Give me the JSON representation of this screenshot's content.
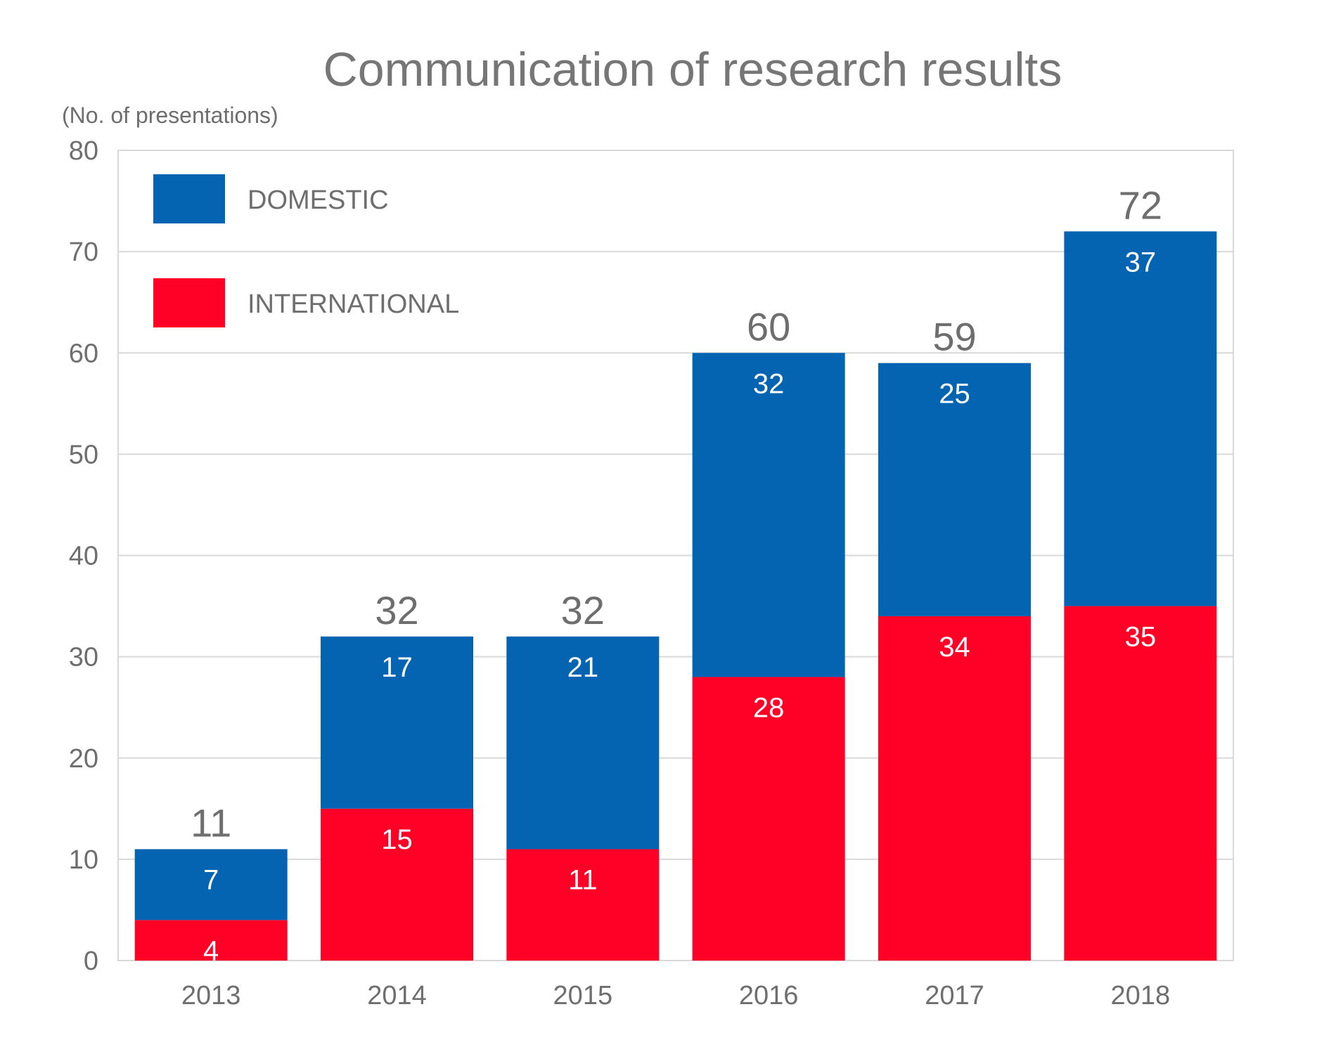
{
  "chart_data": {
    "type": "bar",
    "stacked": true,
    "title": "Communication of research results",
    "ylabel": "(No. of presentations)",
    "xlabel": "",
    "categories": [
      "2013",
      "2014",
      "2015",
      "2016",
      "2017",
      "2018"
    ],
    "series": [
      {
        "name": "INTERNATIONAL",
        "color": "#ff0026",
        "values": [
          4,
          15,
          11,
          28,
          34,
          35
        ]
      },
      {
        "name": "DOMESTIC",
        "color": "#0564b1",
        "values": [
          7,
          17,
          21,
          32,
          25,
          37
        ]
      }
    ],
    "totals": [
      11,
      32,
      32,
      60,
      59,
      72
    ],
    "ylim": [
      0,
      80
    ],
    "yticks": [
      0,
      10,
      20,
      30,
      40,
      50,
      60,
      70,
      80
    ],
    "grid": true,
    "legend": {
      "position": "top-left",
      "entries": [
        {
          "label": "DOMESTIC",
          "color": "#0564b1"
        },
        {
          "label": "INTERNATIONAL",
          "color": "#ff0026"
        }
      ]
    }
  }
}
